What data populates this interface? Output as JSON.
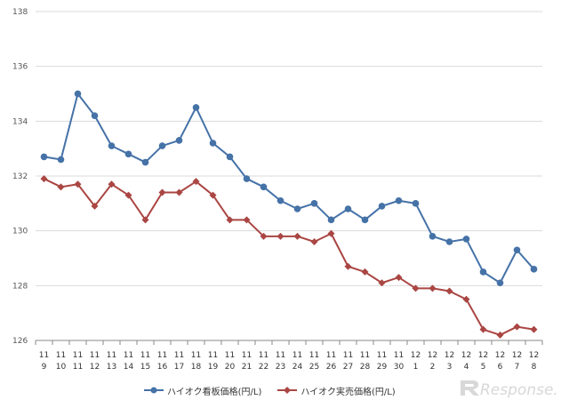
{
  "chart_data": {
    "type": "line",
    "categories": [
      [
        "11",
        "9"
      ],
      [
        "11",
        "10"
      ],
      [
        "11",
        "11"
      ],
      [
        "11",
        "12"
      ],
      [
        "11",
        "13"
      ],
      [
        "11",
        "14"
      ],
      [
        "11",
        "15"
      ],
      [
        "11",
        "16"
      ],
      [
        "11",
        "17"
      ],
      [
        "11",
        "18"
      ],
      [
        "11",
        "19"
      ],
      [
        "11",
        "20"
      ],
      [
        "11",
        "21"
      ],
      [
        "11",
        "22"
      ],
      [
        "11",
        "23"
      ],
      [
        "11",
        "24"
      ],
      [
        "11",
        "25"
      ],
      [
        "11",
        "26"
      ],
      [
        "11",
        "27"
      ],
      [
        "11",
        "28"
      ],
      [
        "11",
        "29"
      ],
      [
        "11",
        "30"
      ],
      [
        "12",
        "1"
      ],
      [
        "12",
        "2"
      ],
      [
        "12",
        "3"
      ],
      [
        "12",
        "4"
      ],
      [
        "12",
        "5"
      ],
      [
        "12",
        "6"
      ],
      [
        "12",
        "7"
      ],
      [
        "12",
        "8"
      ]
    ],
    "series": [
      {
        "name": "ハイオク看板価格(円/L)",
        "color": "#4572A7",
        "marker": "circle",
        "values": [
          132.7,
          132.6,
          135.0,
          134.2,
          133.1,
          132.8,
          132.5,
          133.1,
          133.3,
          134.5,
          133.2,
          132.7,
          131.9,
          131.6,
          131.1,
          130.8,
          131.0,
          130.4,
          130.8,
          130.4,
          130.9,
          131.1,
          131.0,
          129.8,
          129.6,
          129.7,
          128.5,
          128.1,
          129.3,
          128.6
        ]
      },
      {
        "name": "ハイオク実売価格(円/L)",
        "color": "#AA4643",
        "marker": "diamond",
        "values": [
          131.9,
          131.6,
          131.7,
          130.9,
          131.7,
          131.3,
          130.4,
          131.4,
          131.4,
          131.8,
          131.3,
          130.4,
          130.4,
          129.8,
          129.8,
          129.8,
          129.6,
          129.9,
          128.7,
          128.5,
          128.1,
          128.3,
          127.9,
          127.9,
          127.8,
          127.5,
          126.4,
          126.2,
          126.5,
          126.4
        ]
      }
    ],
    "yticks": [
      "126",
      "128",
      "130",
      "132",
      "134",
      "136",
      "138"
    ],
    "ylim": [
      126,
      138
    ],
    "grid": true,
    "legend_position": "bottom"
  },
  "watermark": {
    "text": "Response.",
    "icon": "response-logo-icon"
  }
}
